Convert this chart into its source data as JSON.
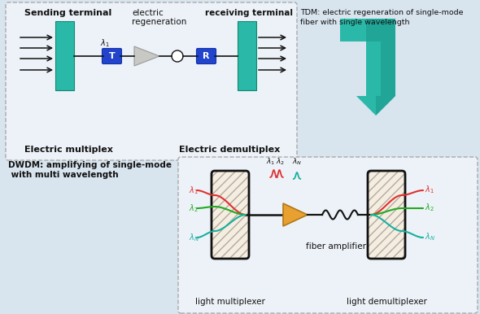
{
  "bg_color": "#d8e4ee",
  "inner_bg": "#edf2f8",
  "teal": "#2ab8a8",
  "teal_dark": "#0d7a72",
  "teal_mid": "#1a9a8a",
  "blue_box": "#2244cc",
  "black": "#111111",
  "gray_tri": "#c8c8c4",
  "gray_edge": "#999999",
  "orange": "#e8a030",
  "red_w": "#e03030",
  "green_w": "#22aa22",
  "teal_w": "#18b0a0",
  "cream": "#f5ede0",
  "dash_color": "#aaaaaa",
  "text_dark": "#111111",
  "tdm_label1": "TDM: electric regeneration of single-mode",
  "tdm_label2": "fiber with single wavelength",
  "dwdm_label1": "DWDM: amplifying of single-mode",
  "dwdm_label2": " with multi wavelength",
  "label_sending": "Sending terminal",
  "label_electric": "electric",
  "label_regen": "regeneration",
  "label_receiving": "receiving terminal",
  "label_emux": "Electric multiplex",
  "label_edemux": "Electric demultiplex",
  "label_lmux": "light multiplexer",
  "label_ldemux": "light demultiplexer",
  "label_famp": "fiber amplifier",
  "label_T": "T",
  "label_R": "R"
}
